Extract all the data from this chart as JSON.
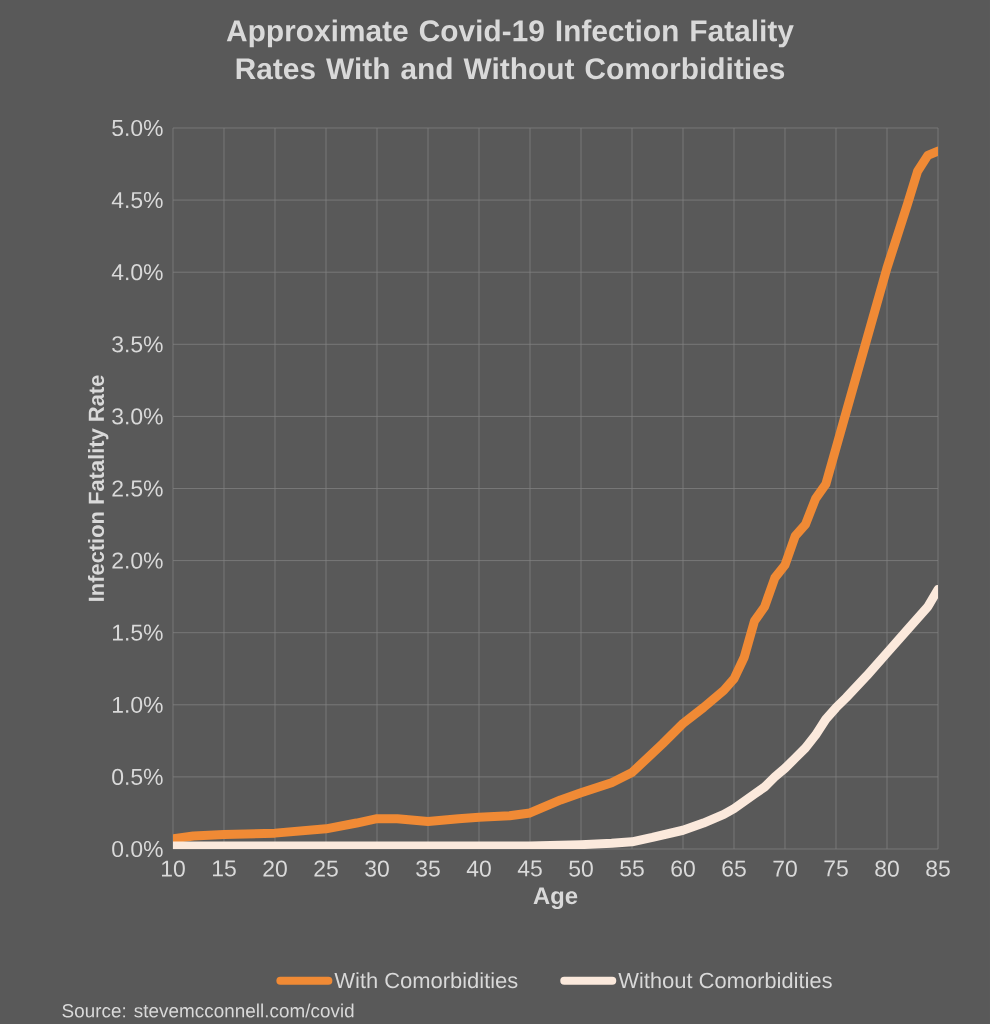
{
  "chart_data": {
    "type": "line",
    "title": "Approximate Covid-19 Infection Fatality Rates With and Without Comorbidities",
    "xlabel": "Age",
    "ylabel": "Infection Fatality Rate",
    "series": [
      {
        "name": "With Comorbidities",
        "color": "#f08a35",
        "x": [
          10,
          12,
          15,
          20,
          25,
          28,
          30,
          32,
          35,
          38,
          40,
          43,
          45,
          48,
          50,
          53,
          55,
          58,
          60,
          62,
          64,
          65,
          66,
          67,
          68,
          69,
          70,
          71,
          72,
          73,
          74,
          75,
          76,
          78,
          80,
          82,
          83,
          84,
          85
        ],
        "values": [
          0.07,
          0.09,
          0.1,
          0.11,
          0.14,
          0.18,
          0.21,
          0.21,
          0.19,
          0.21,
          0.22,
          0.23,
          0.25,
          0.34,
          0.39,
          0.46,
          0.53,
          0.73,
          0.87,
          0.98,
          1.1,
          1.18,
          1.33,
          1.58,
          1.68,
          1.88,
          1.97,
          2.17,
          2.25,
          2.43,
          2.53,
          2.78,
          3.03,
          3.53,
          4.03,
          4.47,
          4.7,
          4.81,
          4.84
        ]
      },
      {
        "name": "Without Comorbidities",
        "color": "#fbe9dc",
        "x": [
          10,
          20,
          30,
          40,
          45,
          50,
          53,
          55,
          57,
          60,
          62,
          64,
          65,
          66,
          67,
          68,
          69,
          70,
          71,
          72,
          73,
          74,
          75,
          76,
          78,
          80,
          82,
          84,
          85
        ],
        "values": [
          0.02,
          0.02,
          0.02,
          0.02,
          0.02,
          0.03,
          0.04,
          0.05,
          0.08,
          0.13,
          0.18,
          0.24,
          0.28,
          0.33,
          0.38,
          0.43,
          0.5,
          0.56,
          0.63,
          0.7,
          0.79,
          0.9,
          0.98,
          1.05,
          1.2,
          1.36,
          1.52,
          1.68,
          1.8
        ]
      }
    ],
    "xlim": [
      10,
      85
    ],
    "xticks": [
      10,
      15,
      20,
      25,
      30,
      35,
      40,
      45,
      50,
      55,
      60,
      65,
      70,
      75,
      80,
      85
    ],
    "ylim": [
      0,
      5
    ],
    "yticks": [
      {
        "value": 0,
        "label": "0.0%"
      },
      {
        "value": 0.5,
        "label": "0.5%"
      },
      {
        "value": 1,
        "label": "1.0%"
      },
      {
        "value": 1.5,
        "label": "1.5%"
      },
      {
        "value": 2,
        "label": "2.0%"
      },
      {
        "value": 2.5,
        "label": "2.5%"
      },
      {
        "value": 3,
        "label": "3.0%"
      },
      {
        "value": 3.5,
        "label": "3.5%"
      },
      {
        "value": 4,
        "label": "4.0%"
      },
      {
        "value": 4.5,
        "label": "4.5%"
      },
      {
        "value": 5,
        "label": "5.0%"
      }
    ],
    "grid": true,
    "legend": "bottom",
    "marker": "none",
    "line_style": "solid",
    "annotations": [
      "Source: stevemcconnell.com/covid"
    ]
  }
}
